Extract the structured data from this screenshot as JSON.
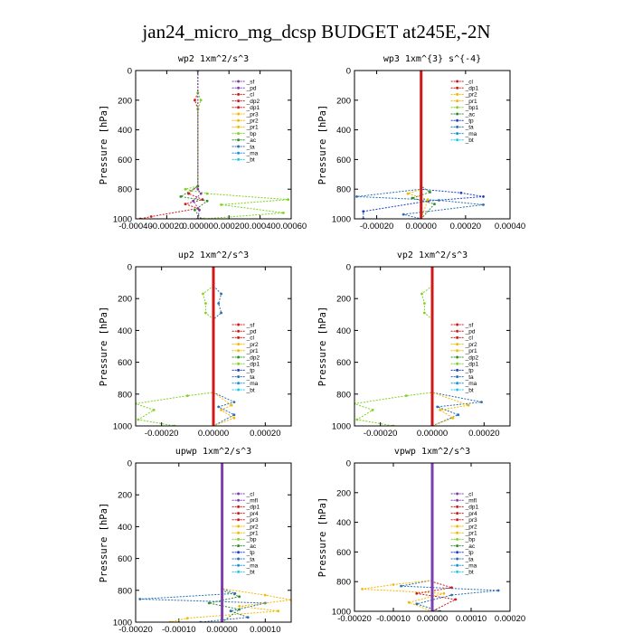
{
  "figure_title": "jan24_micro_mg_dcsp  BUDGET at245E,-2N",
  "chart_data": [
    {
      "type": "line",
      "title": "wp2   1xm^2/s^3",
      "ylabel": "Pressure [hPa]",
      "ylim": [
        1000,
        0
      ],
      "yticks": [
        "0",
        "200",
        "400",
        "600",
        "800",
        "1000"
      ],
      "xlim": [
        -0.0004,
        0.0006
      ],
      "xticks": [
        "-0.00040",
        "-0.00020",
        "0.00000",
        "0.00020",
        "0.00040",
        "0.00060"
      ],
      "legend": [
        "_sf",
        "_pd",
        "_cl",
        "_dp2",
        "_dp1",
        "_pr3",
        "_pr2",
        "_pr1",
        "_bp",
        "_ac",
        "_ta",
        "_ma",
        "_bt"
      ],
      "colors": [
        "#7b3fb0",
        "#7b3fb0",
        "#d01818",
        "#d01818",
        "#d01818",
        "#f5b800",
        "#f5b800",
        "#f5b800",
        "#7ed321",
        "#2e8b2e",
        "#2a6fb5",
        "#1a8fd8",
        "#20c8e8"
      ],
      "series": [
        {
          "name": "_dp1",
          "color": "#d01818",
          "points": [
            [
              0,
              0
            ],
            [
              0,
              150
            ],
            [
              -2e-05,
              200
            ],
            [
              0,
              260
            ],
            [
              0,
              780
            ],
            [
              -6e-05,
              830
            ],
            [
              3e-05,
              870
            ],
            [
              -8e-05,
              900
            ],
            [
              0,
              930
            ],
            [
              -0.0003,
              985
            ],
            [
              -0.00037,
              1000
            ]
          ]
        },
        {
          "name": "_ac",
          "color": "#7ed321",
          "points": [
            [
              0,
              0
            ],
            [
              0,
              150
            ],
            [
              2e-05,
              200
            ],
            [
              0,
              260
            ],
            [
              0,
              780
            ],
            [
              -8e-05,
              800
            ],
            [
              6e-05,
              830
            ],
            [
              0.00058,
              870
            ],
            [
              0.00015,
              905
            ],
            [
              0.00055,
              960
            ],
            [
              4e-05,
              1000
            ]
          ]
        },
        {
          "name": "_ta",
          "color": "#2e8b2e",
          "points": [
            [
              0,
              0
            ],
            [
              0,
              780
            ],
            [
              -0.00011,
              850
            ],
            [
              6e-05,
              880
            ],
            [
              -2e-05,
              940
            ],
            [
              2e-05,
              1000
            ]
          ]
        },
        {
          "name": "_bt",
          "color": "#7b3fb0",
          "points": [
            [
              0,
              0
            ],
            [
              0,
              800
            ],
            [
              2e-05,
              830
            ],
            [
              -3e-05,
              880
            ],
            [
              1e-05,
              940
            ],
            [
              0,
              1000
            ]
          ]
        }
      ]
    },
    {
      "type": "line",
      "title": "wp3   1xm^{3} s^{-4}",
      "ylabel": "Pressure [hPa]",
      "ylim": [
        1000,
        0
      ],
      "yticks": [
        "0",
        "200",
        "400",
        "600",
        "800",
        "1000"
      ],
      "xlim": [
        -0.0003,
        0.0004
      ],
      "xticks": [
        "-0.00020",
        "0.00000",
        "0.00020",
        "0.00040"
      ],
      "legend": [
        "_cl",
        "_dp1",
        "_pr2",
        "_pr1",
        "_bp1",
        "_ac",
        "_tp",
        "_ta",
        "_ma",
        "_bt"
      ],
      "colors": [
        "#d01818",
        "#d01818",
        "#f5b800",
        "#f5b800",
        "#7ed321",
        "#2e8b2e",
        "#1a3fc8",
        "#2a6fb5",
        "#1a8fd8",
        "#20c8e8"
      ],
      "series": [
        {
          "name": "_tp",
          "color": "#1a3fc8",
          "points": [
            [
              0,
              0
            ],
            [
              0,
              800
            ],
            [
              0.00018,
              825
            ],
            [
              0.00028,
              850
            ],
            [
              3e-05,
              880
            ],
            [
              -0.00026,
              950
            ],
            [
              -0.00026,
              1000
            ]
          ]
        },
        {
          "name": "_ta",
          "color": "#2a6fb5",
          "points": [
            [
              0,
              0
            ],
            [
              0,
              800
            ],
            [
              -0.00029,
              850
            ],
            [
              8e-05,
              875
            ],
            [
              0.00028,
              905
            ],
            [
              -8e-05,
              970
            ],
            [
              0,
              1000
            ]
          ]
        },
        {
          "name": "_ac",
          "color": "#2e8b2e",
          "points": [
            [
              0,
              0
            ],
            [
              0,
              780
            ],
            [
              4e-05,
              820
            ],
            [
              -4e-05,
              860
            ],
            [
              6e-05,
              900
            ],
            [
              0,
              1000
            ]
          ]
        },
        {
          "name": "_pr1",
          "color": "#f5b800",
          "points": [
            [
              0,
              0
            ],
            [
              0,
              800
            ],
            [
              -6e-05,
              830
            ],
            [
              3e-05,
              870
            ],
            [
              0,
              1000
            ]
          ]
        },
        {
          "name": "_bt",
          "color": "#d01818",
          "points": [
            [
              0,
              0
            ],
            [
              0,
              1000
            ]
          ]
        }
      ]
    },
    {
      "type": "line",
      "title": "up2   1xm^2/s^3",
      "ylabel": "Pressure [hPa]",
      "ylim": [
        1000,
        0
      ],
      "yticks": [
        "0",
        "200",
        "400",
        "600",
        "800",
        "1000"
      ],
      "xlim": [
        -0.0003,
        0.0003
      ],
      "xticks": [
        "-0.00020",
        "0.00000",
        "0.00020"
      ],
      "legend": [
        "_sf",
        "_pd",
        "_cl",
        "_pr2",
        "_pr1",
        "_dp2",
        "_dp1",
        "_tp",
        "_ta",
        "_ma",
        "_bt"
      ],
      "colors": [
        "#d01818",
        "#d01818",
        "#d01818",
        "#f5b800",
        "#f5b800",
        "#2e8b2e",
        "#7ed321",
        "#1a3fc8",
        "#2a6fb5",
        "#1a8fd8",
        "#20c8e8"
      ],
      "series": [
        {
          "name": "_dp1",
          "color": "#7ed321",
          "points": [
            [
              0,
              0
            ],
            [
              0,
              120
            ],
            [
              -4e-05,
              170
            ],
            [
              -3e-05,
              230
            ],
            [
              -3e-05,
              290
            ],
            [
              0,
              330
            ],
            [
              0,
              790
            ],
            [
              -0.0001,
              810
            ],
            [
              -0.0003,
              860
            ],
            [
              -0.00023,
              900
            ],
            [
              -0.00029,
              960
            ],
            [
              -0.00015,
              1000
            ]
          ]
        },
        {
          "name": "_ta",
          "color": "#2a6fb5",
          "points": [
            [
              0,
              0
            ],
            [
              0,
              120
            ],
            [
              3e-05,
              170
            ],
            [
              2e-05,
              230
            ],
            [
              3e-05,
              290
            ],
            [
              0,
              330
            ],
            [
              0,
              790
            ],
            [
              8e-05,
              850
            ],
            [
              2e-05,
              880
            ],
            [
              8e-05,
              930
            ],
            [
              0,
              1000
            ]
          ]
        },
        {
          "name": "_pr2",
          "color": "#f5b800",
          "points": [
            [
              0,
              0
            ],
            [
              0,
              790
            ],
            [
              7e-05,
              870
            ],
            [
              3e-05,
              900
            ],
            [
              8e-05,
              950
            ],
            [
              0,
              1000
            ]
          ]
        },
        {
          "name": "_bt",
          "color": "#d01818",
          "points": [
            [
              0,
              0
            ],
            [
              0,
              1000
            ]
          ]
        }
      ]
    },
    {
      "type": "line",
      "title": "vp2   1xm^2/s^3",
      "ylabel": "Pressure [hPa]",
      "ylim": [
        1000,
        0
      ],
      "yticks": [
        "0",
        "200",
        "400",
        "600",
        "800",
        "1000"
      ],
      "xlim": [
        -0.0003,
        0.0003
      ],
      "xticks": [
        "-0.00020",
        "0.00000",
        "0.00020"
      ],
      "legend": [
        "_sf",
        "_pd",
        "_cl",
        "_pr2",
        "_pr1",
        "_dp2",
        "_dp1",
        "_tp",
        "_ta",
        "_ma",
        "_bt"
      ],
      "colors": [
        "#d01818",
        "#d01818",
        "#d01818",
        "#f5b800",
        "#f5b800",
        "#2e8b2e",
        "#7ed321",
        "#1a3fc8",
        "#2a6fb5",
        "#1a8fd8",
        "#20c8e8"
      ],
      "series": [
        {
          "name": "_dp1",
          "color": "#7ed321",
          "points": [
            [
              0,
              0
            ],
            [
              0,
              120
            ],
            [
              -4e-05,
              170
            ],
            [
              -3e-05,
              230
            ],
            [
              -3e-05,
              290
            ],
            [
              0,
              330
            ],
            [
              0,
              790
            ],
            [
              -0.0001,
              810
            ],
            [
              -0.0003,
              860
            ],
            [
              -0.00023,
              900
            ],
            [
              -0.00029,
              960
            ],
            [
              -0.00015,
              1000
            ]
          ]
        },
        {
          "name": "_ta",
          "color": "#2a6fb5",
          "points": [
            [
              0,
              0
            ],
            [
              0,
              790
            ],
            [
              0.00019,
              850
            ],
            [
              2e-05,
              880
            ],
            [
              0.0001,
              930
            ],
            [
              0,
              1000
            ]
          ]
        },
        {
          "name": "_pr2",
          "color": "#f5b800",
          "points": [
            [
              0,
              0
            ],
            [
              0,
              790
            ],
            [
              0.00014,
              870
            ],
            [
              3e-05,
              900
            ],
            [
              8e-05,
              950
            ],
            [
              0,
              1000
            ]
          ]
        },
        {
          "name": "_bt",
          "color": "#d01818",
          "points": [
            [
              0,
              0
            ],
            [
              0,
              1000
            ]
          ]
        }
      ]
    },
    {
      "type": "line",
      "title": "upwp   1xm^2/s^3",
      "ylabel": "Pressure [hPa]",
      "ylim": [
        1000,
        0
      ],
      "yticks": [
        "0",
        "200",
        "400",
        "600",
        "800",
        "1000"
      ],
      "xlim": [
        -0.0002,
        0.00016
      ],
      "xticks": [
        "-0.00020",
        "-0.00010",
        "0.00000",
        "0.00010"
      ],
      "legend": [
        "_cl",
        "_mfl",
        "_dp1",
        "_pr4",
        "_pr3",
        "_pr2",
        "_pr1",
        "_bp",
        "_ac",
        "_tp",
        "_ta",
        "_ma",
        "_bt"
      ],
      "colors": [
        "#7b3fb0",
        "#7b3fb0",
        "#d01818",
        "#d01818",
        "#d01818",
        "#f5b800",
        "#f5b800",
        "#7ed321",
        "#2e8b2e",
        "#1a3fc8",
        "#2a6fb5",
        "#1a8fd8",
        "#20c8e8"
      ],
      "series": [
        {
          "name": "_ta",
          "color": "#2a6fb5",
          "points": [
            [
              0,
              0
            ],
            [
              0,
              790
            ],
            [
              3e-05,
              820
            ],
            [
              -0.00019,
              855
            ],
            [
              0.0001,
              880
            ],
            [
              2e-05,
              930
            ],
            [
              6e-05,
              970
            ],
            [
              -5e-05,
              1000
            ]
          ]
        },
        {
          "name": "_pr2",
          "color": "#f5b800",
          "points": [
            [
              0,
              0
            ],
            [
              0,
              790
            ],
            [
              0.0001,
              830
            ],
            [
              0.00016,
              860
            ],
            [
              4e-05,
              900
            ],
            [
              0.00013,
              930
            ],
            [
              -8e-05,
              975
            ],
            [
              -0.00012,
              1000
            ]
          ]
        },
        {
          "name": "_ac",
          "color": "#2e8b2e",
          "points": [
            [
              0,
              0
            ],
            [
              0,
              800
            ],
            [
              4e-05,
              840
            ],
            [
              -3e-05,
              880
            ],
            [
              4e-05,
              920
            ],
            [
              0,
              1000
            ]
          ]
        },
        {
          "name": "_bt",
          "color": "#7b3fb0",
          "points": [
            [
              0,
              0
            ],
            [
              0,
              1000
            ]
          ]
        }
      ]
    },
    {
      "type": "line",
      "title": "vpwp   1xm^2/s^3",
      "ylabel": "Pressure [hPa]",
      "ylim": [
        1000,
        0
      ],
      "yticks": [
        "0",
        "200",
        "400",
        "600",
        "800",
        "1000"
      ],
      "xlim": [
        -0.0002,
        0.0002
      ],
      "xticks": [
        "-0.00020",
        "-0.00010",
        "0.00000",
        "0.00010",
        "0.00020"
      ],
      "legend": [
        "_cl",
        "_mfl",
        "_dp1",
        "_pr4",
        "_pr3",
        "_pr2",
        "_pr1",
        "_bp",
        "_ac",
        "_tp",
        "_ta",
        "_ma",
        "_bt"
      ],
      "colors": [
        "#7b3fb0",
        "#7b3fb0",
        "#d01818",
        "#d01818",
        "#d01818",
        "#f5b800",
        "#f5b800",
        "#7ed321",
        "#2e8b2e",
        "#1a3fc8",
        "#2a6fb5",
        "#1a8fd8",
        "#20c8e8"
      ],
      "series": [
        {
          "name": "_ta",
          "color": "#2a6fb5",
          "points": [
            [
              0,
              0
            ],
            [
              0,
              790
            ],
            [
              -8e-05,
              830
            ],
            [
              0.00017,
              860
            ],
            [
              5e-05,
              890
            ],
            [
              -4e-05,
              950
            ],
            [
              2e-05,
              1000
            ]
          ]
        },
        {
          "name": "_pr2",
          "color": "#f5b800",
          "points": [
            [
              0,
              0
            ],
            [
              0,
              790
            ],
            [
              -0.0001,
              820
            ],
            [
              -0.00018,
              850
            ],
            [
              3e-05,
              880
            ],
            [
              -6e-05,
              940
            ],
            [
              0,
              1000
            ]
          ]
        },
        {
          "name": "_dp1",
          "color": "#d01818",
          "points": [
            [
              0,
              0
            ],
            [
              0,
              800
            ],
            [
              5e-05,
              840
            ],
            [
              -4e-05,
              880
            ],
            [
              6e-05,
              920
            ],
            [
              0,
              1000
            ]
          ]
        },
        {
          "name": "_bt",
          "color": "#7b3fb0",
          "points": [
            [
              0,
              0
            ],
            [
              0,
              1000
            ]
          ]
        }
      ]
    }
  ]
}
